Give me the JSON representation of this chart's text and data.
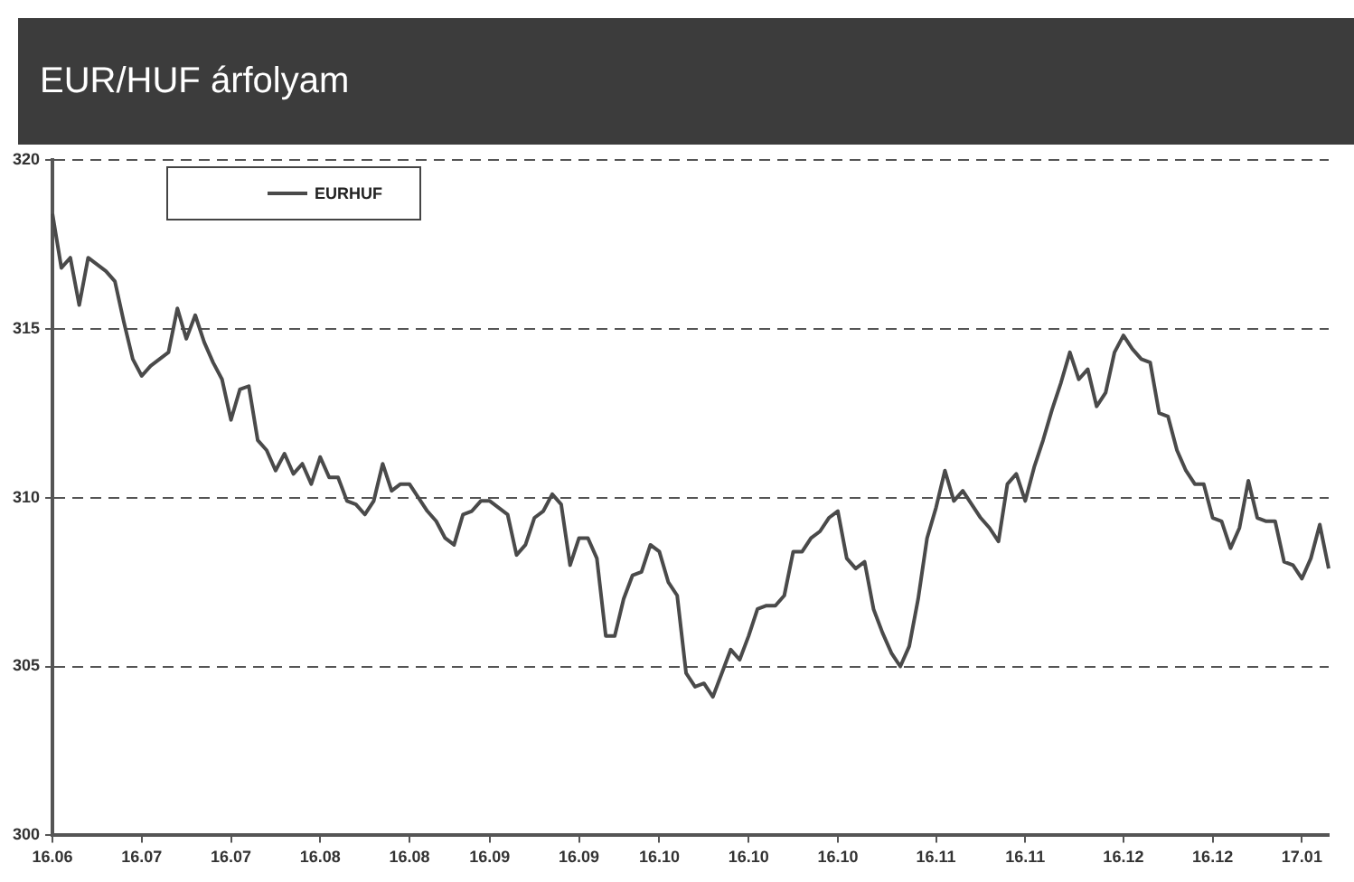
{
  "chart_data": {
    "type": "line",
    "title": "EUR/HUF árfolyam",
    "categories": [
      "16.06",
      null,
      null,
      null,
      null,
      null,
      null,
      null,
      null,
      null,
      "16.07",
      null,
      null,
      null,
      null,
      null,
      null,
      null,
      null,
      null,
      "16.07",
      null,
      null,
      null,
      null,
      null,
      null,
      null,
      null,
      null,
      "16.08",
      null,
      null,
      null,
      null,
      null,
      null,
      null,
      null,
      null,
      "16.08",
      null,
      null,
      null,
      null,
      null,
      null,
      null,
      null,
      "16.09",
      null,
      null,
      null,
      null,
      null,
      null,
      null,
      null,
      null,
      "16.09",
      null,
      null,
      null,
      null,
      null,
      null,
      null,
      null,
      "16.10",
      null,
      null,
      null,
      null,
      null,
      null,
      null,
      null,
      null,
      "16.10",
      null,
      null,
      null,
      null,
      null,
      null,
      null,
      null,
      null,
      "16.10",
      null,
      null,
      null,
      null,
      null,
      null,
      null,
      null,
      null,
      null,
      "16.11",
      null,
      null,
      null,
      null,
      null,
      null,
      null,
      null,
      null,
      "16.11",
      null,
      null,
      null,
      null,
      null,
      null,
      null,
      null,
      null,
      null,
      "16.12",
      null,
      null,
      null,
      null,
      null,
      null,
      null,
      null,
      null,
      "16.12",
      null,
      null,
      null,
      null,
      null,
      null,
      null,
      null,
      null,
      "17.01",
      null,
      null,
      null
    ],
    "series": [
      {
        "name": "EURHUF",
        "color": "#4a4a4a",
        "values": [
          318.4,
          316.8,
          317.1,
          315.7,
          317.1,
          316.9,
          316.7,
          316.4,
          315.2,
          314.1,
          313.6,
          313.9,
          314.1,
          314.3,
          315.6,
          314.7,
          315.4,
          314.6,
          314.0,
          313.5,
          312.3,
          313.2,
          313.3,
          311.7,
          311.4,
          310.8,
          311.3,
          310.7,
          311.0,
          310.4,
          311.2,
          310.6,
          310.6,
          309.9,
          309.8,
          309.5,
          309.9,
          311.0,
          310.2,
          310.4,
          310.4,
          310.0,
          309.6,
          309.3,
          308.8,
          308.6,
          309.5,
          309.6,
          309.9,
          309.9,
          309.7,
          309.5,
          308.3,
          308.6,
          309.4,
          309.6,
          310.1,
          309.8,
          308.0,
          308.8,
          308.8,
          308.2,
          305.9,
          305.9,
          307.0,
          307.7,
          307.8,
          308.6,
          308.4,
          307.5,
          307.1,
          304.8,
          304.4,
          304.5,
          304.1,
          304.8,
          305.5,
          305.2,
          305.9,
          306.7,
          306.8,
          306.8,
          307.1,
          308.4,
          308.4,
          308.8,
          309.0,
          309.4,
          309.6,
          308.2,
          307.9,
          308.1,
          306.7,
          306.0,
          305.4,
          305.0,
          305.6,
          307.0,
          308.8,
          309.7,
          310.8,
          309.9,
          310.2,
          309.8,
          309.4,
          309.1,
          308.7,
          310.4,
          310.7,
          309.9,
          310.9,
          311.7,
          312.6,
          313.4,
          314.3,
          313.5,
          313.8,
          312.7,
          313.1,
          314.3,
          314.8,
          314.4,
          314.1,
          314.0,
          312.5,
          312.4,
          311.4,
          310.8,
          310.4,
          310.4,
          309.4,
          309.3,
          308.5,
          309.1,
          310.5,
          309.4,
          309.3,
          309.3,
          308.1,
          308.0,
          307.6,
          308.2,
          309.2,
          307.9
        ]
      }
    ],
    "ylim": [
      300,
      320
    ],
    "yticks": [
      300,
      305,
      310,
      315,
      320
    ],
    "grid": "y",
    "legend": "top left",
    "marker": "none",
    "line_style": "solid"
  }
}
